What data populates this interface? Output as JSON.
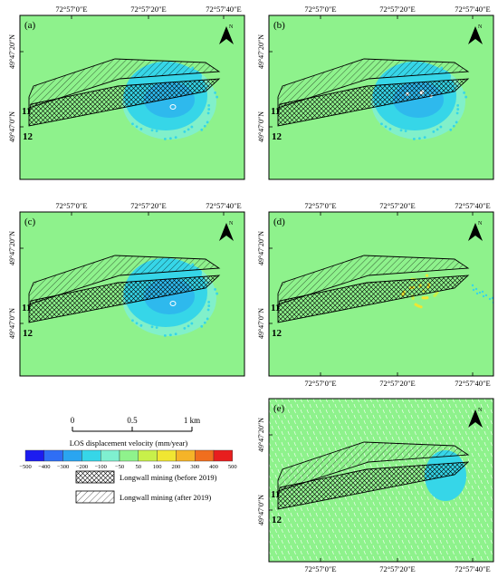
{
  "panels": [
    {
      "id": "a",
      "label": "(a)",
      "anomaly": "blue"
    },
    {
      "id": "b",
      "label": "(b)",
      "anomaly": "blue_white"
    },
    {
      "id": "c",
      "label": "(c)",
      "anomaly": "blue"
    },
    {
      "id": "d",
      "label": "(d)",
      "anomaly": "yellow"
    },
    {
      "id": "e",
      "label": "(e)",
      "anomaly": "cyan_disc"
    }
  ],
  "axis": {
    "lon_ticks": [
      "72°57′0″E",
      "72°57′20″E",
      "72°57′40″E"
    ],
    "lat_ticks": [
      "49°47′20″N",
      "49°47′0″N"
    ]
  },
  "north_label": "N",
  "panel_numbers": [
    "11",
    "12"
  ],
  "scale_bar": {
    "ticks": [
      "0",
      "0.5",
      "1 km"
    ]
  },
  "colorbar": {
    "title": "LOS displacement velocity (mm/year)",
    "ticks": [
      "−500",
      "−400",
      "−300",
      "−200",
      "−100",
      "−50",
      "50",
      "100",
      "200",
      "300",
      "400",
      "500"
    ],
    "colors": [
      "#1c1cf0",
      "#2f6ef5",
      "#2aa5f0",
      "#36d6e8",
      "#7ff0d0",
      "#8ff28c",
      "#c8f04a",
      "#f0e632",
      "#f5b428",
      "#f06e1e",
      "#e81e1e"
    ]
  },
  "legend": {
    "before": "Longwall mining (before 2019)",
    "after": "Longwall mining (after 2019)"
  },
  "colors": {
    "background": "#8ef28c",
    "frame": "#000000"
  }
}
